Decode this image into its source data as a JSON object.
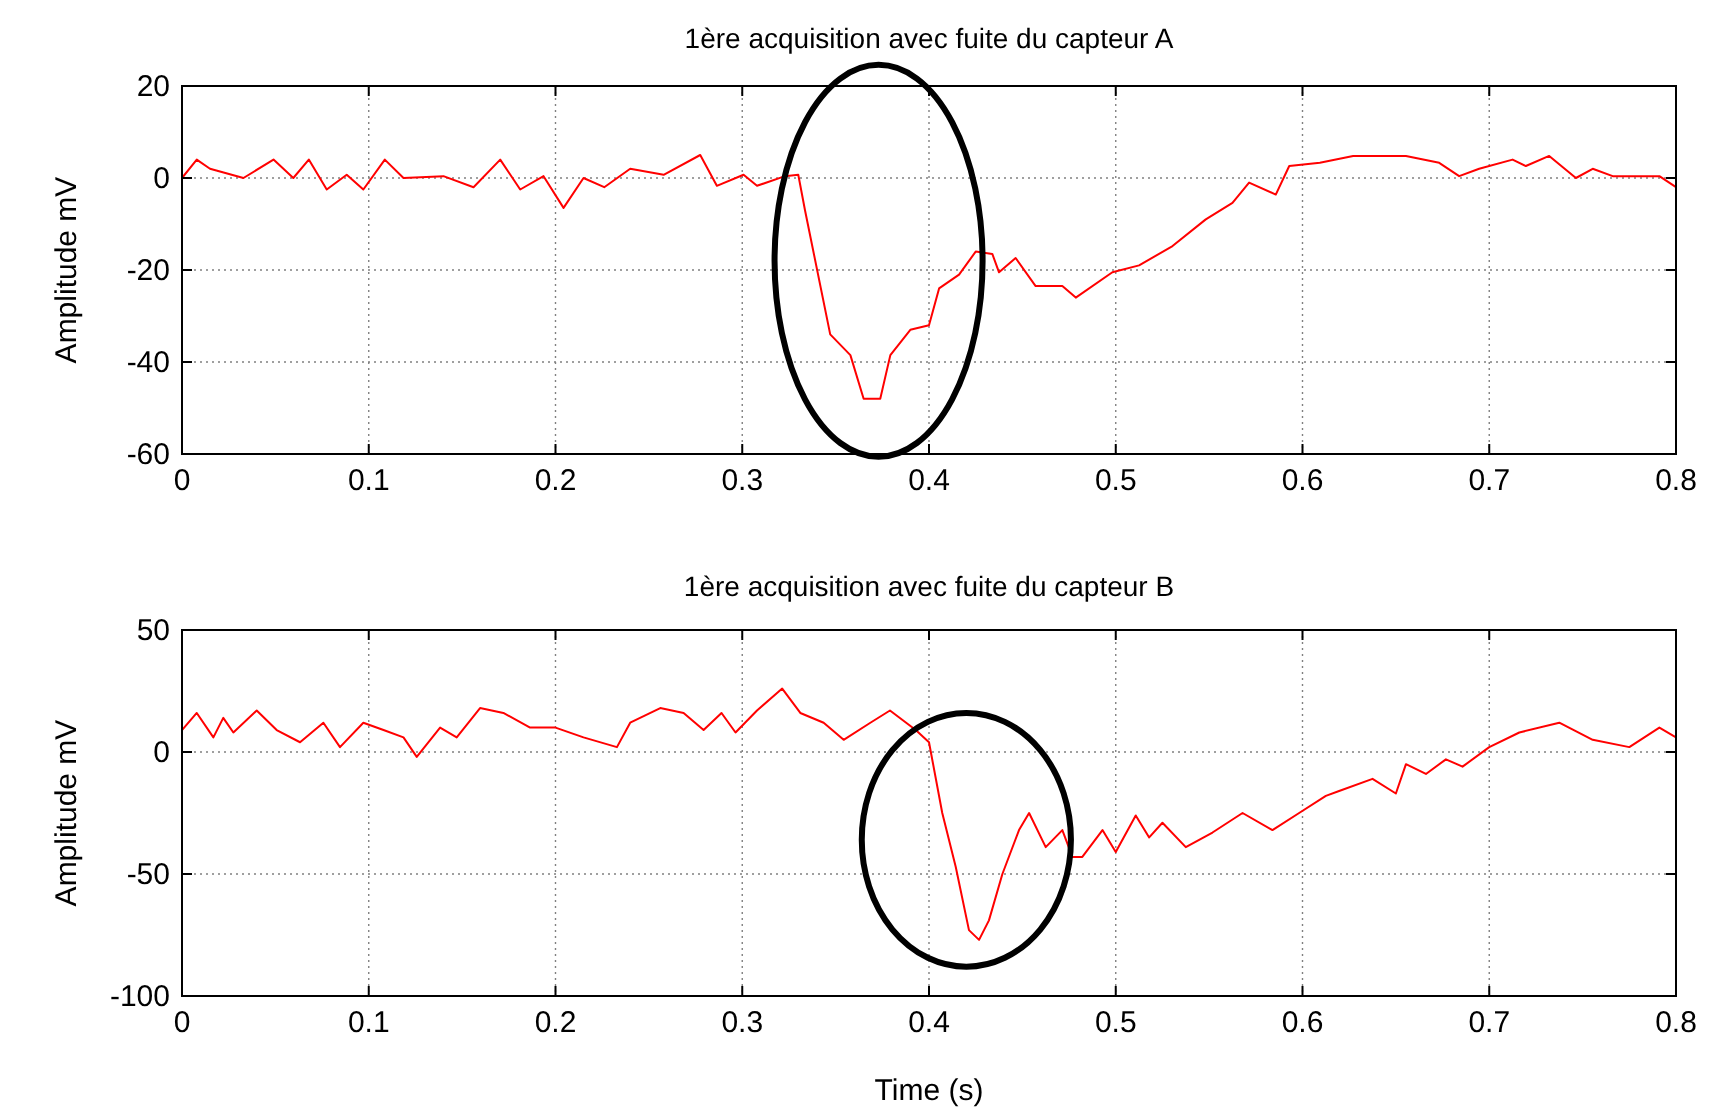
{
  "chart_data": [
    {
      "type": "line",
      "title": "1ère acquisition avec fuite du capteur A",
      "ylabel": "Amplitude mV",
      "xlim": [
        0,
        0.8
      ],
      "xticks": [
        0,
        0.1,
        0.2,
        0.3,
        0.4,
        0.5,
        0.6,
        0.7,
        0.8
      ],
      "ylim": [
        -60,
        20
      ],
      "yticks": [
        -60,
        -40,
        -20,
        0,
        20
      ],
      "grid": true,
      "series": [
        {
          "color": "#ff0000",
          "x": [
            0,
            0.0079,
            0.015,
            0.0329,
            0.049,
            0.0596,
            0.0679,
            0.0775,
            0.0882,
            0.0971,
            0.1086,
            0.1186,
            0.14,
            0.1561,
            0.1704,
            0.1811,
            0.1936,
            0.2043,
            0.215,
            0.2261,
            0.24,
            0.2579,
            0.2775,
            0.2864,
            0.3007,
            0.3079,
            0.3229,
            0.33,
            0.3336,
            0.3471,
            0.3579,
            0.365,
            0.3739,
            0.3793,
            0.39,
            0.4,
            0.4054,
            0.4161,
            0.425,
            0.4339,
            0.4375,
            0.4464,
            0.4571,
            0.4714,
            0.4786,
            0.4982,
            0.5125,
            0.5304,
            0.5482,
            0.5625,
            0.5714,
            0.5857,
            0.5929,
            0.6093,
            0.6271,
            0.6554,
            0.6732,
            0.6839,
            0.6946,
            0.7125,
            0.7196,
            0.7321,
            0.7464,
            0.7554,
            0.7661,
            0.7911,
            0.8
          ],
          "values": [
            0,
            4,
            2,
            0,
            4,
            0,
            4,
            -2.5,
            0.7,
            -2.5,
            4,
            0,
            0.4,
            -2,
            4,
            -2.5,
            0.4,
            -6.5,
            0,
            -2,
            2,
            0.7,
            5,
            -1.7,
            0.7,
            -1.7,
            0.4,
            0.7,
            -7,
            -34,
            -38.5,
            -48,
            -48,
            -38.5,
            -33,
            -32,
            -24,
            -21,
            -16,
            -16.5,
            -20.5,
            -17.4,
            -23.5,
            -23.5,
            -26,
            -20.5,
            -19,
            -14.8,
            -9,
            -5.4,
            -1,
            -3.6,
            2.6,
            3.3,
            4.8,
            4.8,
            3.3,
            0.4,
            2,
            4,
            2.6,
            4.8,
            0,
            2,
            0.4,
            0.4,
            -2
          ]
        }
      ]
    },
    {
      "type": "line",
      "title": "1ère acquisition avec fuite du capteur B",
      "xlabel": "Time (s)",
      "ylabel": "Amplitude mV",
      "xlim": [
        0,
        0.8
      ],
      "xticks": [
        0,
        0.1,
        0.2,
        0.3,
        0.4,
        0.5,
        0.6,
        0.7,
        0.8
      ],
      "ylim": [
        -100,
        50
      ],
      "yticks": [
        -100,
        -50,
        0,
        50
      ],
      "grid": true,
      "series": [
        {
          "color": "#ff0000",
          "x": [
            0,
            0.0079,
            0.0168,
            0.0221,
            0.0275,
            0.04,
            0.0507,
            0.0632,
            0.0757,
            0.0846,
            0.0971,
            0.1079,
            0.1186,
            0.1257,
            0.1382,
            0.1471,
            0.1596,
            0.1721,
            0.1864,
            0.2,
            0.215,
            0.2329,
            0.24,
            0.2561,
            0.2686,
            0.2793,
            0.2889,
            0.2964,
            0.3079,
            0.3214,
            0.3311,
            0.3436,
            0.3543,
            0.3686,
            0.3791,
            0.3929,
            0.4,
            0.4071,
            0.4143,
            0.4214,
            0.4268,
            0.4321,
            0.4393,
            0.4482,
            0.4536,
            0.4625,
            0.4714,
            0.4768,
            0.4821,
            0.4929,
            0.5,
            0.5107,
            0.5179,
            0.525,
            0.5375,
            0.5518,
            0.5679,
            0.5839,
            0.5982,
            0.6125,
            0.6196,
            0.6375,
            0.65,
            0.6554,
            0.6661,
            0.6768,
            0.6857,
            0.7,
            0.7161,
            0.7375,
            0.7554,
            0.775,
            0.7911,
            0.8
          ],
          "values": [
            9,
            16,
            6,
            14,
            8,
            17,
            9,
            4,
            12,
            2,
            12,
            9,
            6,
            -2,
            10,
            6,
            18,
            16,
            10,
            10,
            6,
            2,
            12,
            18,
            16,
            9,
            16,
            8,
            17,
            26,
            16,
            12,
            5,
            12,
            17,
            9,
            4,
            -25,
            -47,
            -73,
            -77,
            -69,
            -50,
            -32,
            -25,
            -39,
            -32,
            -43,
            -43,
            -32,
            -41,
            -26,
            -35,
            -29,
            -39,
            -33,
            -25,
            -32,
            -25,
            -18,
            -16,
            -11,
            -17,
            -5,
            -9,
            -3,
            -6,
            2,
            8,
            12,
            5,
            2,
            10,
            6
          ]
        }
      ]
    }
  ]
}
